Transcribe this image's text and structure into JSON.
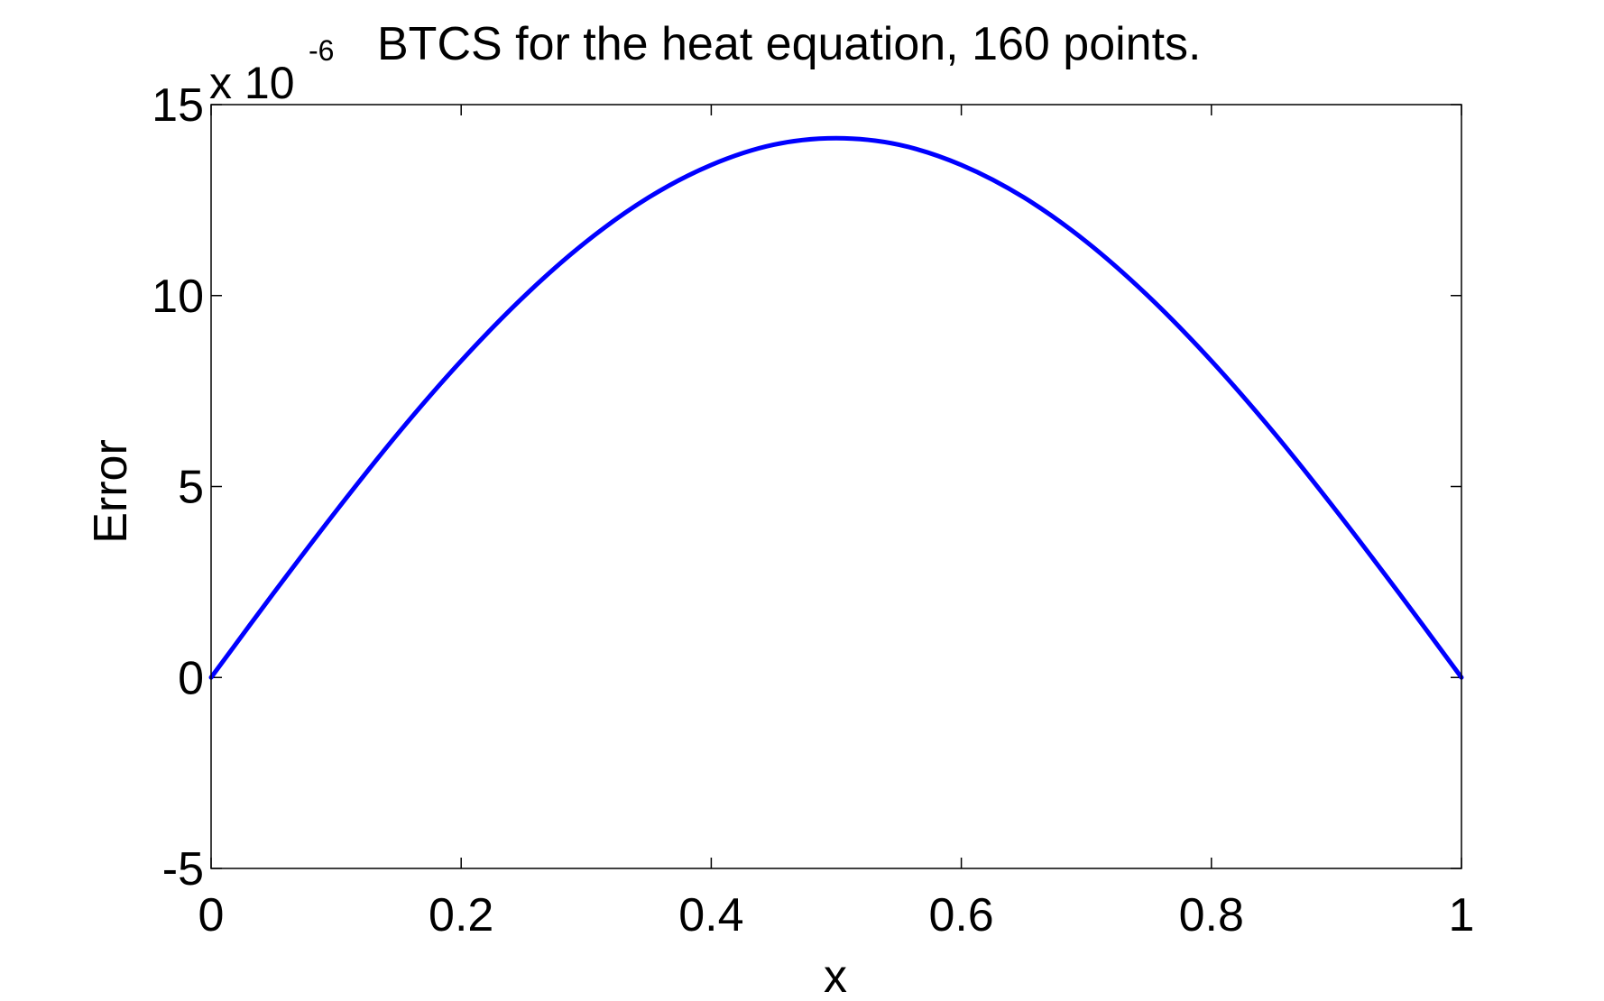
{
  "chart_data": {
    "type": "line",
    "title": "BTCS for the heat equation, 160 points.",
    "xlabel": "x",
    "ylabel": "Error",
    "multiplier": {
      "base": "x 10",
      "exponent": "-6"
    },
    "xlim": [
      0,
      1
    ],
    "ylim": [
      -5,
      15
    ],
    "xticks": [
      0,
      0.2,
      0.4,
      0.6,
      0.8,
      1
    ],
    "xtick_labels": [
      "0",
      "0.2",
      "0.4",
      "0.6",
      "0.8",
      "1"
    ],
    "yticks": [
      -5,
      0,
      5,
      10,
      15
    ],
    "ytick_labels": [
      "-5",
      "0",
      "5",
      "10",
      "15"
    ],
    "grid": false,
    "line_color": "#0000ff",
    "series": [
      {
        "x": [
          0,
          0.05,
          0.1,
          0.15,
          0.2,
          0.25,
          0.3,
          0.35,
          0.4,
          0.45,
          0.5,
          0.55,
          0.6,
          0.65,
          0.7,
          0.75,
          0.8,
          0.85,
          0.9,
          0.95,
          1
        ],
        "values": [
          0,
          2.21,
          4.36,
          6.41,
          8.29,
          9.97,
          11.41,
          12.57,
          13.42,
          13.95,
          14.12,
          13.95,
          13.42,
          12.57,
          11.41,
          9.97,
          8.29,
          6.41,
          4.36,
          2.21,
          0
        ]
      }
    ]
  }
}
